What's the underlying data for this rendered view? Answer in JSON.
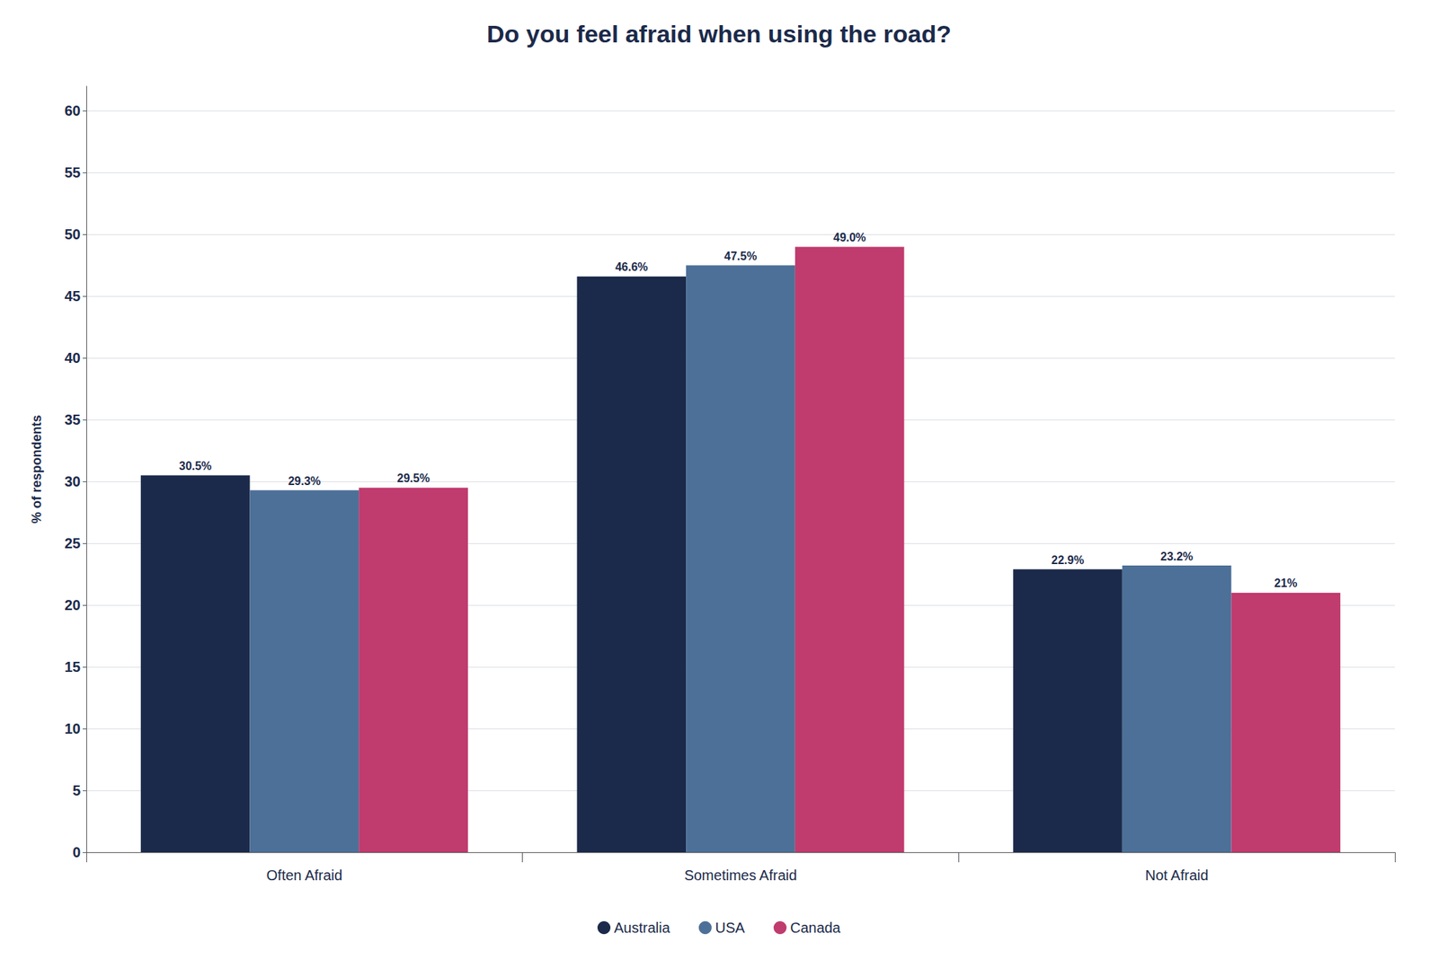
{
  "chart_data": {
    "type": "bar",
    "title": "Do you feel afraid when using the road?",
    "categories": [
      "Often Afraid",
      "Sometimes Afraid",
      "Not Afraid"
    ],
    "series": [
      {
        "name": "Australia",
        "color": "#1b2a4a",
        "values": [
          30.5,
          46.6,
          22.9
        ],
        "value_labels": [
          "30.5%",
          "46.6%",
          "22.9%"
        ]
      },
      {
        "name": "USA",
        "color": "#4d7098",
        "values": [
          29.3,
          47.5,
          23.2
        ],
        "value_labels": [
          "29.3%",
          "47.5%",
          "23.2%"
        ]
      },
      {
        "name": "Canada",
        "color": "#c03b6e",
        "values": [
          29.5,
          49.0,
          21.0
        ],
        "value_labels": [
          "29.5%",
          "49.0%",
          "21%"
        ]
      }
    ],
    "ylabel": "% of respondents",
    "ylim": [
      0,
      62
    ],
    "yticks": [
      0,
      5,
      10,
      15,
      20,
      25,
      30,
      35,
      40,
      45,
      50,
      55,
      60
    ],
    "grid": true,
    "legend": "bottom",
    "data_labels": true
  }
}
